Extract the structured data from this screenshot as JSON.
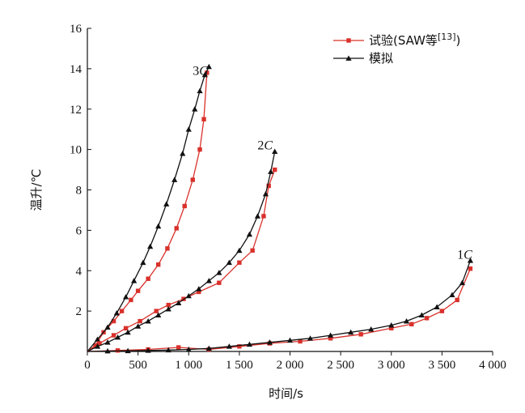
{
  "chart_data": {
    "type": "line",
    "xlabel": "时间/s",
    "ylabel": "温升/℃",
    "xlim": [
      0,
      4000
    ],
    "ylim": [
      0,
      16
    ],
    "x_ticks": [
      0,
      500,
      1000,
      1500,
      2000,
      2500,
      3000,
      3500,
      4000
    ],
    "x_tick_labels": [
      "0",
      "500",
      "1 000",
      "1 500",
      "2 000",
      "2 500",
      "3 000",
      "3 500",
      "4 000"
    ],
    "y_ticks": [
      2,
      4,
      6,
      8,
      10,
      12,
      14,
      16
    ],
    "y_tick_labels": [
      "2",
      "4",
      "6",
      "8",
      "10",
      "12",
      "14",
      "16"
    ],
    "grid": false,
    "legend_position": "top-right",
    "legend": [
      {
        "label": "试验(SAW等",
        "sup": "[13]",
        "suffix": ")",
        "color": "#d9312b",
        "marker": "square"
      },
      {
        "label": "模拟",
        "color": "#111111",
        "marker": "triangle"
      }
    ],
    "series": [
      {
        "name": "3C",
        "kind": "test",
        "color": "#d9312b",
        "marker": "square",
        "label_at": [
          1040,
          13.7
        ],
        "x": [
          0,
          80,
          160,
          260,
          340,
          430,
          500,
          600,
          700,
          790,
          880,
          960,
          1040,
          1110,
          1150,
          1180
        ],
        "y": [
          0,
          0.3,
          0.95,
          1.5,
          2.0,
          2.55,
          3.0,
          3.6,
          4.3,
          5.1,
          6.1,
          7.2,
          8.5,
          10.0,
          11.5,
          13.8
        ]
      },
      {
        "name": "3C",
        "kind": "simulation",
        "color": "#111111",
        "marker": "triangle",
        "x": [
          0,
          100,
          200,
          290,
          380,
          460,
          550,
          620,
          700,
          780,
          860,
          940,
          1000,
          1060,
          1110,
          1160,
          1200
        ],
        "y": [
          0,
          0.6,
          1.2,
          1.9,
          2.7,
          3.5,
          4.4,
          5.2,
          6.2,
          7.3,
          8.5,
          9.8,
          11.0,
          12.0,
          12.9,
          13.7,
          14.1
        ]
      },
      {
        "name": "2C",
        "kind": "test",
        "color": "#d9312b",
        "marker": "square",
        "label_at": [
          1680,
          10.0
        ],
        "x": [
          0,
          120,
          260,
          380,
          520,
          680,
          800,
          950,
          1100,
          1300,
          1500,
          1630,
          1740,
          1790,
          1850
        ],
        "y": [
          0,
          0.4,
          0.8,
          1.15,
          1.5,
          2.0,
          2.3,
          2.6,
          2.95,
          3.4,
          4.4,
          5.0,
          6.7,
          8.2,
          9.0
        ]
      },
      {
        "name": "2C",
        "kind": "simulation",
        "color": "#111111",
        "marker": "triangle",
        "x": [
          0,
          100,
          200,
          300,
          400,
          500,
          600,
          700,
          800,
          900,
          1000,
          1100,
          1200,
          1300,
          1400,
          1500,
          1600,
          1680,
          1760,
          1810,
          1850
        ],
        "y": [
          0,
          0.25,
          0.45,
          0.7,
          0.95,
          1.25,
          1.5,
          1.8,
          2.1,
          2.4,
          2.75,
          3.1,
          3.5,
          3.9,
          4.4,
          5.0,
          5.8,
          6.7,
          7.8,
          8.9,
          9.9
        ]
      },
      {
        "name": "1C",
        "kind": "test",
        "color": "#d9312b",
        "marker": "square",
        "label_at": [
          3650,
          4.6
        ],
        "x": [
          0,
          300,
          600,
          900,
          1200,
          1500,
          1800,
          2100,
          2400,
          2700,
          3000,
          3200,
          3350,
          3500,
          3650,
          3780
        ],
        "y": [
          0,
          0.05,
          0.1,
          0.2,
          0.1,
          0.25,
          0.4,
          0.5,
          0.65,
          0.85,
          1.15,
          1.35,
          1.65,
          2.0,
          2.55,
          4.1
        ]
      },
      {
        "name": "1C",
        "kind": "simulation",
        "color": "#111111",
        "marker": "triangle",
        "x": [
          0,
          200,
          400,
          600,
          800,
          1000,
          1200,
          1400,
          1600,
          1800,
          2000,
          2200,
          2400,
          2600,
          2800,
          3000,
          3150,
          3300,
          3450,
          3600,
          3700,
          3780
        ],
        "y": [
          0,
          0.02,
          0.03,
          0.05,
          0.07,
          0.1,
          0.15,
          0.25,
          0.35,
          0.45,
          0.55,
          0.65,
          0.8,
          0.95,
          1.1,
          1.3,
          1.5,
          1.8,
          2.2,
          2.8,
          3.4,
          4.5
        ]
      }
    ]
  }
}
